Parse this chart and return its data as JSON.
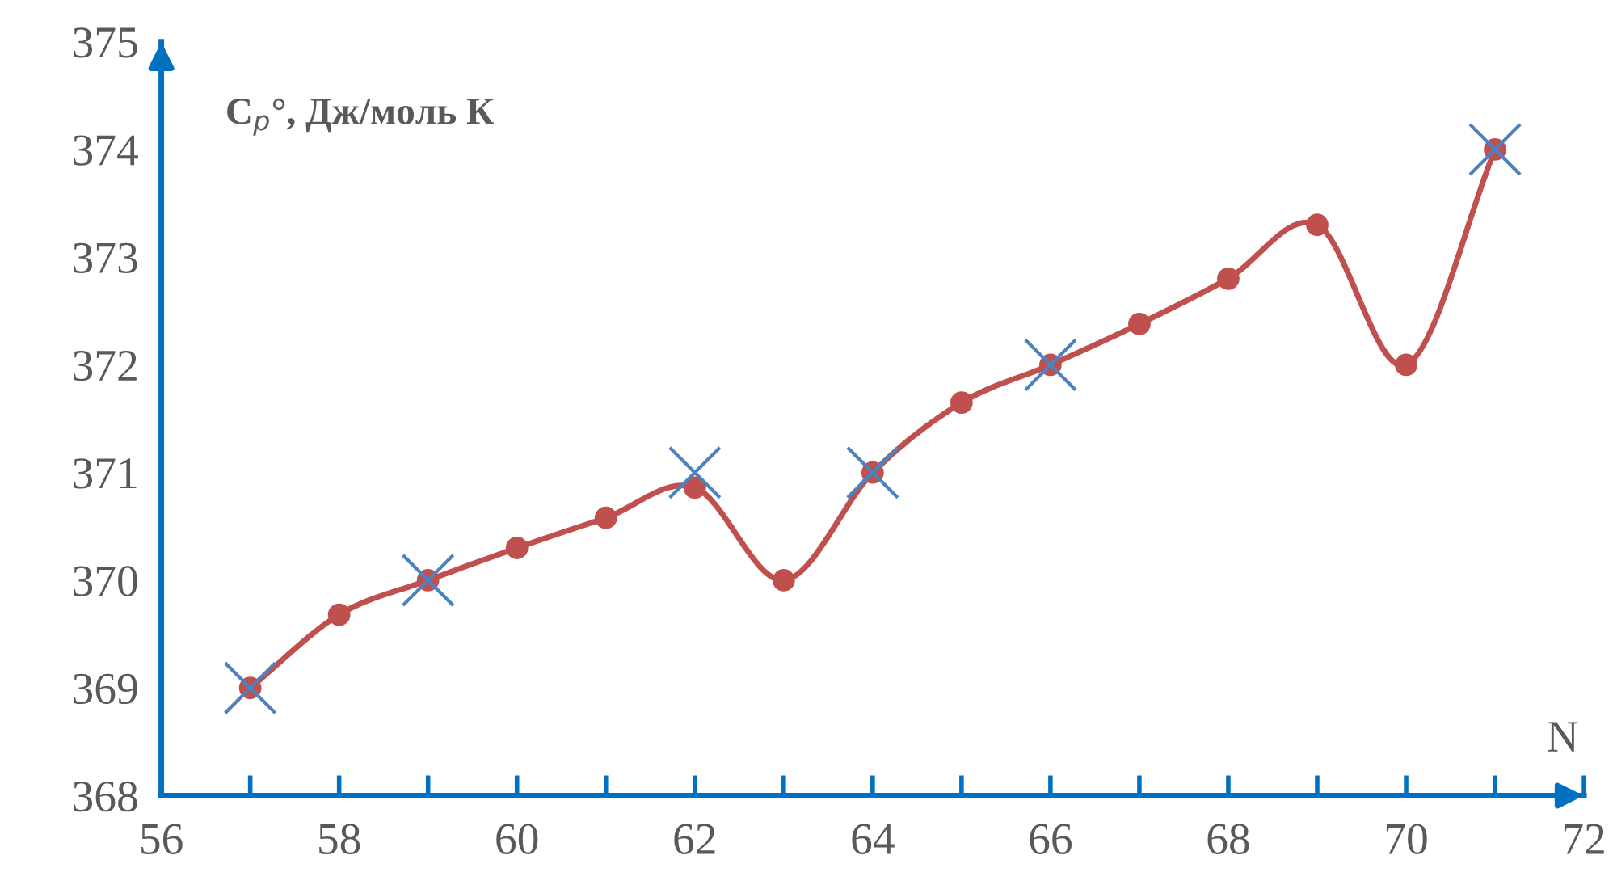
{
  "chart_data": {
    "type": "line",
    "xlabel": "N",
    "ylabel": "C$_{p}$°, Дж/моль К",
    "x": [
      57,
      58,
      59,
      60,
      61,
      62,
      63,
      64,
      65,
      66,
      67,
      68,
      69,
      70,
      71
    ],
    "series": [
      {
        "color": "#c0504d",
        "marker": "circle",
        "values": [
          369,
          369.68,
          370,
          370.3,
          370.58,
          370.86,
          370,
          371,
          371.65,
          372,
          372.38,
          372.8,
          373.3,
          372,
          374
        ]
      },
      {
        "type": "scatter",
        "color": "#4f81bd",
        "marker": "cross",
        "x": [
          57,
          59,
          62,
          64,
          66,
          71
        ],
        "values": [
          369,
          370,
          371,
          371,
          372,
          374
        ]
      }
    ],
    "xlim": [
      56,
      72
    ],
    "ylim": [
      368,
      375
    ],
    "xticks": [
      56,
      {
        "value": 57,
        "label": null
      },
      58,
      {
        "value": 59,
        "label": null
      },
      60,
      {
        "value": 61,
        "label": null
      },
      62,
      {
        "value": 63,
        "label": null
      },
      64,
      {
        "value": 65,
        "label": null
      },
      66,
      {
        "value": 67,
        "label": null
      },
      68,
      {
        "value": 69,
        "label": null
      },
      70,
      {
        "value": 71,
        "label": null
      },
      72
    ],
    "yticks": [
      368,
      369,
      370,
      371,
      372,
      373,
      374,
      375
    ],
    "grid": false,
    "legend": false
  }
}
